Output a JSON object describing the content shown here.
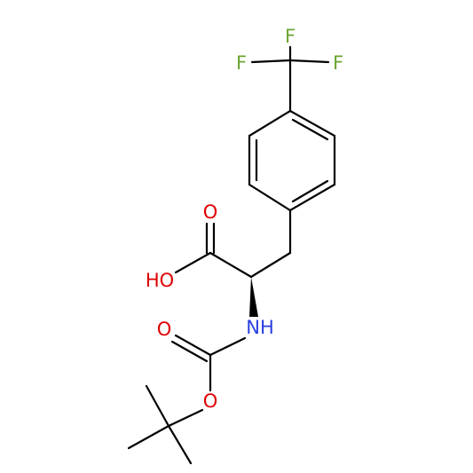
{
  "atoms": [
    "F",
    "F",
    "F",
    "O",
    "HO",
    "NH",
    "O",
    "O"
  ]
}
